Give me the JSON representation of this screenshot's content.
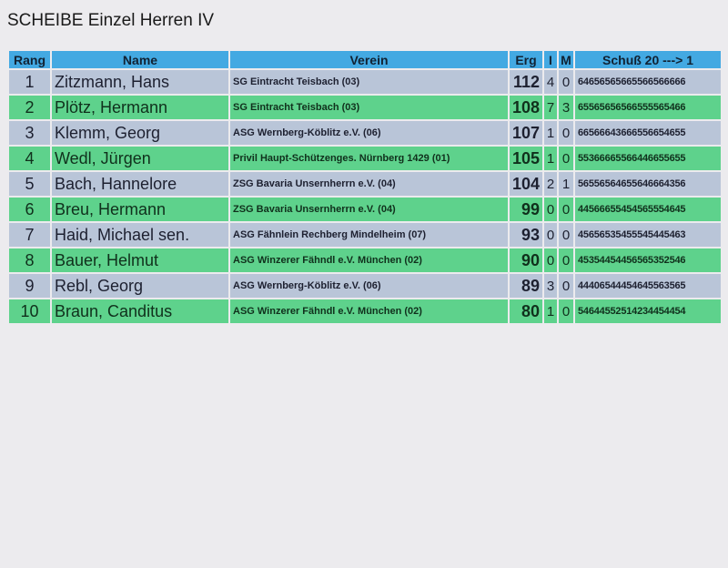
{
  "title": "SCHEIBE Einzel Herren IV",
  "columns": {
    "rang": "Rang",
    "name": "Name",
    "verein": "Verein",
    "erg": "Erg",
    "i": "I",
    "m": "M",
    "shots": "Schuß 20 ---> 1"
  },
  "colors": {
    "header": "#43a9e2",
    "row_odd": "#b9c5d8",
    "row_even": "#5ed28c"
  },
  "rows": [
    {
      "rang": "1",
      "name": "Zitzmann, Hans",
      "verein": "SG Eintracht Teisbach (03)",
      "erg": "112",
      "i": "4",
      "m": "0",
      "shots": "64656565665566566666"
    },
    {
      "rang": "2",
      "name": "Plötz, Hermann",
      "verein": "SG Eintracht Teisbach (03)",
      "erg": "108",
      "i": "7",
      "m": "3",
      "shots": "65565656566555565466"
    },
    {
      "rang": "3",
      "name": "Klemm, Georg",
      "verein": "ASG Wernberg-Köblitz e.V. (06)",
      "erg": "107",
      "i": "1",
      "m": "0",
      "shots": "66566643666556654655"
    },
    {
      "rang": "4",
      "name": "Wedl, Jürgen",
      "verein": "Privil  Haupt-Schützenges. Nürnberg 1429 (01)",
      "erg": "105",
      "i": "1",
      "m": "0",
      "shots": "55366665566446655655"
    },
    {
      "rang": "5",
      "name": "Bach, Hannelore",
      "verein": "ZSG Bavaria Unsernherrn e.V. (04)",
      "erg": "104",
      "i": "2",
      "m": "1",
      "shots": "56556564655646664356"
    },
    {
      "rang": "6",
      "name": "Breu, Hermann",
      "verein": "ZSG Bavaria Unsernherrn e.V. (04)",
      "erg": "99",
      "i": "0",
      "m": "0",
      "shots": "44566655454565554645"
    },
    {
      "rang": "7",
      "name": "Haid, Michael sen.",
      "verein": "ASG Fähnlein Rechberg Mindelheim (07)",
      "erg": "93",
      "i": "0",
      "m": "0",
      "shots": "45656535455545445463"
    },
    {
      "rang": "8",
      "name": "Bauer, Helmut",
      "verein": "ASG Winzerer Fähndl e.V. München (02)",
      "erg": "90",
      "i": "0",
      "m": "0",
      "shots": "45354454456565352546"
    },
    {
      "rang": "9",
      "name": "Rebl, Georg",
      "verein": "ASG Wernberg-Köblitz e.V. (06)",
      "erg": "89",
      "i": "3",
      "m": "0",
      "shots": "44406544454645563565"
    },
    {
      "rang": "10",
      "name": "Braun, Canditus",
      "verein": "ASG Winzerer Fähndl e.V. München (02)",
      "erg": "80",
      "i": "1",
      "m": "0",
      "shots": "54644552514234454454"
    }
  ]
}
